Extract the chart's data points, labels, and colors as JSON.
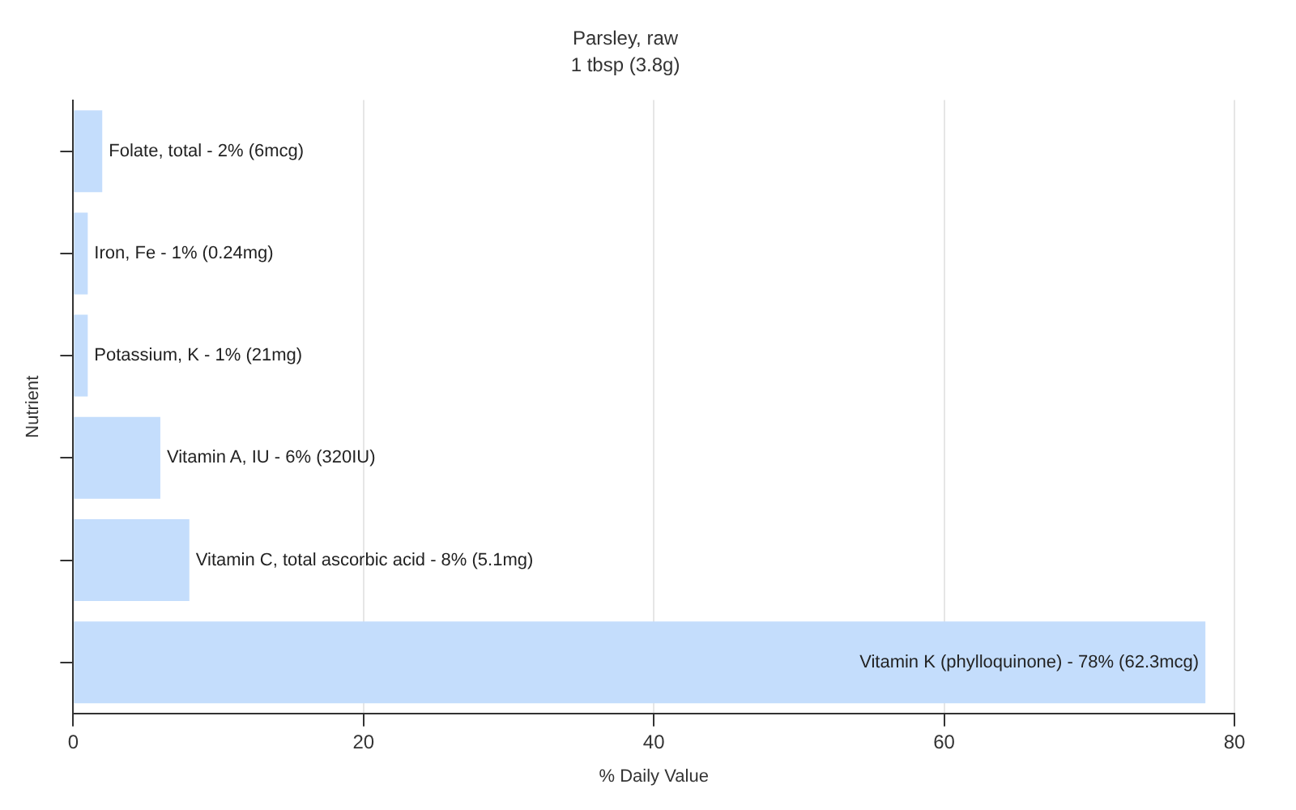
{
  "chart_data": {
    "type": "bar",
    "orientation": "horizontal",
    "title": "Parsley, raw",
    "subtitle": "1 tbsp (3.8g)",
    "xlabel": "% Daily Value",
    "ylabel": "Nutrient",
    "categories": [
      null,
      null,
      null,
      null,
      null,
      null
    ],
    "values": [
      2,
      1,
      1,
      6,
      8,
      78
    ],
    "annotations": [
      {
        "text": "Folate, total - 2% (6mcg)",
        "x": 2
      },
      {
        "text": "Iron, Fe - 1% (0.24mg)",
        "x": 1
      },
      {
        "text": "Potassium, K - 1% (21mg)",
        "x": 1
      },
      {
        "text": "Vitamin A, IU - 6% (320IU)",
        "x": 6
      },
      {
        "text": "Vitamin C, total ascorbic acid - 8% (5.1mg)",
        "x": 8
      },
      {
        "text": "Vitamin K (phylloquinone) - 78% (62.3mcg)",
        "x": 78
      }
    ],
    "color": "#c4ddfc",
    "xlim": [
      0,
      80
    ],
    "xticks": [
      0,
      20,
      40,
      60,
      80
    ],
    "grid": "x",
    "legend": false
  }
}
